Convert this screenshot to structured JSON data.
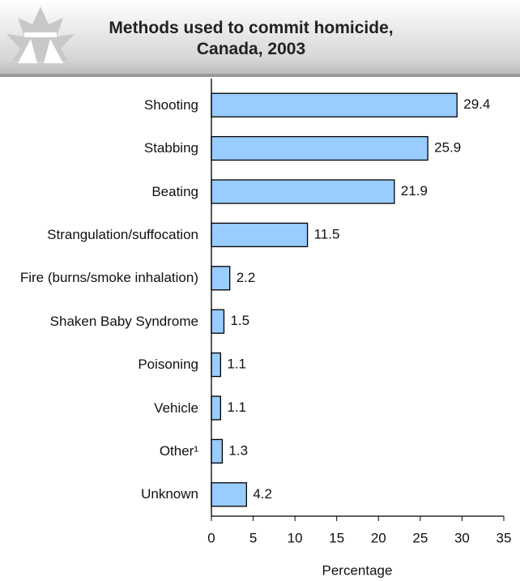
{
  "chart_data": {
    "type": "bar",
    "orientation": "horizontal",
    "title": "Methods used to commit homicide, Canada, 2003",
    "categories": [
      "Shooting",
      "Stabbing",
      "Beating",
      "Strangulation/suffocation",
      "Fire (burns/smoke inhalation)",
      "Shaken Baby Syndrome",
      "Poisoning",
      "Vehicle",
      "Other¹",
      "Unknown"
    ],
    "values": [
      29.4,
      25.9,
      21.9,
      11.5,
      2.2,
      1.5,
      1.1,
      1.1,
      1.3,
      4.2
    ],
    "color": "#99ccff",
    "xlabel": "Percentage",
    "xlim": [
      0,
      35
    ],
    "xticks": [
      0,
      5,
      10,
      15,
      20,
      25,
      30,
      35
    ]
  }
}
